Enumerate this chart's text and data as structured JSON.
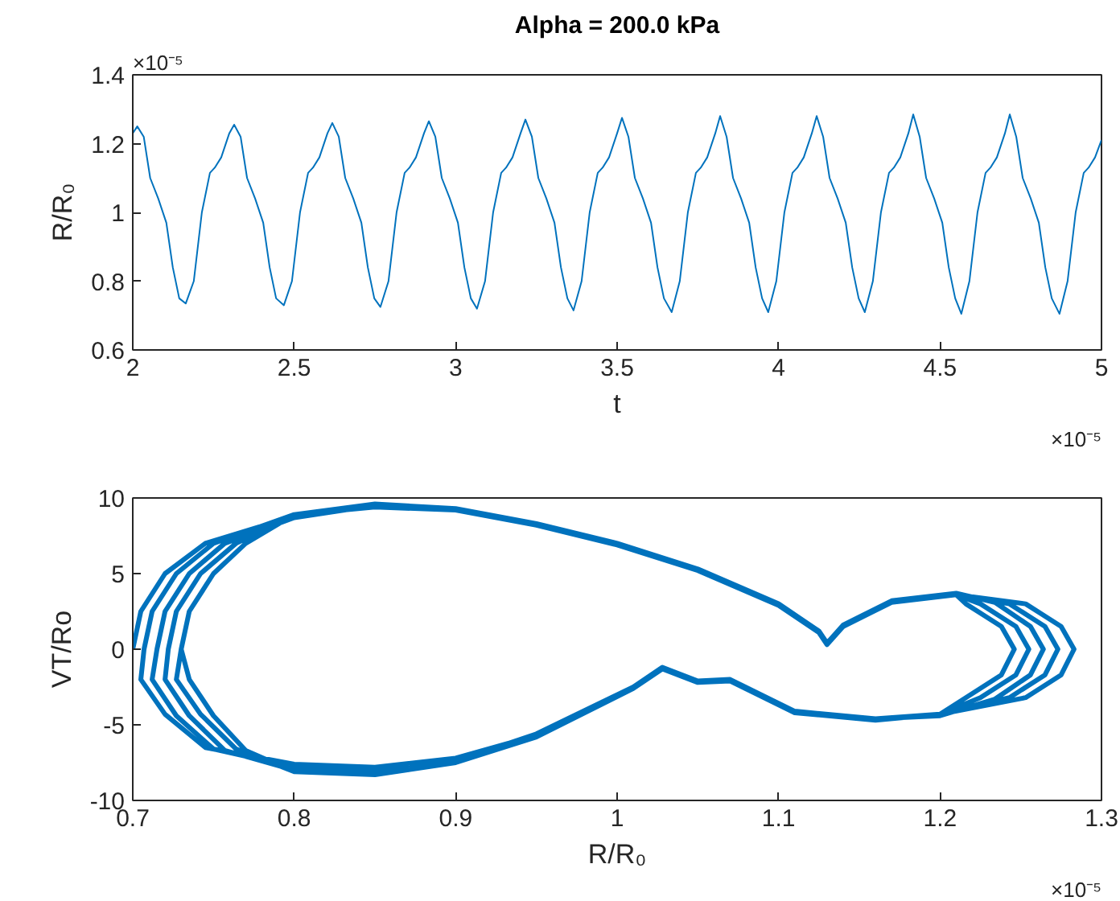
{
  "chart_data": [
    {
      "type": "line",
      "title": "Alpha = 200.0 kPa",
      "xlabel": "t",
      "ylabel": "R/R₀",
      "xlim": [
        2,
        5
      ],
      "xticks": [
        2,
        2.5,
        3,
        3.5,
        4,
        4.5,
        5
      ],
      "ylim": [
        0.6,
        1.4
      ],
      "yticks": [
        0.6,
        0.8,
        1,
        1.2,
        1.4
      ],
      "grid": false,
      "annotations": [
        "×10⁻⁵",
        "×10⁻⁵"
      ],
      "series": [
        {
          "color": "#0072bd",
          "x": [
            2.0,
            2.014,
            2.034,
            2.054,
            2.079,
            2.104,
            2.124,
            2.144,
            2.164,
            2.189,
            2.214,
            2.239,
            2.254,
            2.274,
            2.299,
            2.314,
            2.334,
            2.354,
            2.379,
            2.404,
            2.424,
            2.444,
            2.468,
            2.493,
            2.518,
            2.543,
            2.558,
            2.578,
            2.603,
            2.618,
            2.638,
            2.658,
            2.683,
            2.708,
            2.728,
            2.748,
            2.767,
            2.792,
            2.817,
            2.842,
            2.857,
            2.877,
            2.902,
            2.917,
            2.937,
            2.957,
            2.982,
            3.007,
            3.027,
            3.047,
            3.066,
            3.091,
            3.116,
            3.141,
            3.156,
            3.176,
            3.201,
            3.216,
            3.236,
            3.256,
            3.281,
            3.306,
            3.326,
            3.346,
            3.365,
            3.39,
            3.415,
            3.44,
            3.455,
            3.475,
            3.5,
            3.515,
            3.535,
            3.555,
            3.58,
            3.605,
            3.625,
            3.645,
            3.669,
            3.694,
            3.719,
            3.744,
            3.759,
            3.779,
            3.804,
            3.819,
            3.839,
            3.859,
            3.884,
            3.909,
            3.929,
            3.949,
            3.968,
            3.993,
            4.018,
            4.043,
            4.058,
            4.078,
            4.103,
            4.118,
            4.138,
            4.158,
            4.183,
            4.208,
            4.228,
            4.248,
            4.267,
            4.292,
            4.317,
            4.342,
            4.357,
            4.377,
            4.402,
            4.417,
            4.437,
            4.457,
            4.482,
            4.507,
            4.527,
            4.547,
            4.566,
            4.591,
            4.616,
            4.641,
            4.656,
            4.676,
            4.701,
            4.716,
            4.736,
            4.756,
            4.781,
            4.806,
            4.826,
            4.846,
            4.87,
            4.895,
            4.92,
            4.945,
            4.96,
            4.98,
            5.0
          ],
          "values": [
            1.23,
            1.25,
            1.22,
            1.1,
            1.04,
            0.97,
            0.84,
            0.75,
            0.735,
            0.8,
            1.0,
            1.115,
            1.13,
            1.16,
            1.23,
            1.255,
            1.22,
            1.1,
            1.04,
            0.97,
            0.84,
            0.75,
            0.73,
            0.8,
            1.0,
            1.115,
            1.13,
            1.16,
            1.23,
            1.26,
            1.22,
            1.1,
            1.04,
            0.97,
            0.84,
            0.75,
            0.725,
            0.8,
            1.0,
            1.115,
            1.13,
            1.16,
            1.23,
            1.265,
            1.22,
            1.1,
            1.04,
            0.97,
            0.84,
            0.75,
            0.72,
            0.8,
            1.0,
            1.115,
            1.13,
            1.16,
            1.23,
            1.27,
            1.22,
            1.1,
            1.04,
            0.97,
            0.84,
            0.75,
            0.715,
            0.8,
            1.0,
            1.115,
            1.13,
            1.16,
            1.23,
            1.275,
            1.22,
            1.1,
            1.04,
            0.97,
            0.84,
            0.75,
            0.71,
            0.8,
            1.0,
            1.115,
            1.13,
            1.16,
            1.23,
            1.28,
            1.22,
            1.1,
            1.04,
            0.97,
            0.84,
            0.75,
            0.71,
            0.8,
            1.0,
            1.115,
            1.13,
            1.16,
            1.23,
            1.28,
            1.22,
            1.1,
            1.04,
            0.97,
            0.84,
            0.75,
            0.71,
            0.8,
            1.0,
            1.115,
            1.13,
            1.16,
            1.23,
            1.285,
            1.22,
            1.1,
            1.04,
            0.97,
            0.84,
            0.75,
            0.705,
            0.8,
            1.0,
            1.115,
            1.13,
            1.16,
            1.23,
            1.285,
            1.22,
            1.1,
            1.04,
            0.97,
            0.84,
            0.75,
            0.705,
            0.8,
            1.0,
            1.115,
            1.13,
            1.16,
            1.21
          ]
        }
      ]
    },
    {
      "type": "line",
      "xlabel": "R/R₀",
      "ylabel": "VT/Ro",
      "xlim": [
        0.7,
        1.3
      ],
      "xticks": [
        0.7,
        0.8,
        0.9,
        1,
        1.1,
        1.2,
        1.3
      ],
      "ylim": [
        -10,
        10
      ],
      "yticks": [
        -10,
        -5,
        0,
        5,
        10
      ],
      "grid": false,
      "annotations": [
        "×10⁻⁵"
      ],
      "series": [
        {
          "color": "#0072bd",
          "x": [
            0.7,
            0.705,
            0.72,
            0.745,
            0.8,
            0.85,
            0.9,
            0.95,
            1.0,
            1.05,
            1.1,
            1.125,
            1.13,
            1.14,
            1.17,
            1.21,
            1.253,
            1.275,
            1.283,
            1.275,
            1.253,
            1.2,
            1.16,
            1.11,
            1.07,
            1.05,
            1.028,
            1.01,
            0.95,
            0.9,
            0.85,
            0.8,
            0.745,
            0.72,
            0.705,
            0.707,
            0.712,
            0.727,
            0.75,
            0.8,
            0.85,
            0.9,
            0.95,
            1.0,
            1.05,
            1.1,
            1.125,
            1.13,
            1.14,
            1.17,
            1.21,
            1.243,
            1.265,
            1.273,
            1.265,
            1.243,
            1.2,
            1.16,
            1.11,
            1.07,
            1.05,
            1.028,
            1.01,
            0.95,
            0.9,
            0.85,
            0.8,
            0.75,
            0.727,
            0.712,
            0.715,
            0.72,
            0.735,
            0.757,
            0.8,
            0.85,
            0.9,
            0.95,
            1.0,
            1.05,
            1.1,
            1.125,
            1.13,
            1.14,
            1.17,
            1.21,
            1.234,
            1.256,
            1.264,
            1.256,
            1.234,
            1.2,
            1.16,
            1.11,
            1.07,
            1.05,
            1.028,
            1.01,
            0.95,
            0.9,
            0.85,
            0.8,
            0.757,
            0.735,
            0.72,
            0.722,
            0.727,
            0.742,
            0.764,
            0.8,
            0.85,
            0.9,
            0.95,
            1.0,
            1.05,
            1.1,
            1.125,
            1.13,
            1.14,
            1.17,
            1.21,
            1.225,
            1.247,
            1.255,
            1.247,
            1.225,
            1.2,
            1.16,
            1.11,
            1.07,
            1.05,
            1.028,
            1.01,
            0.95,
            0.9,
            0.85,
            0.8,
            0.764,
            0.742,
            0.727,
            0.73,
            0.735,
            0.75,
            0.77,
            0.8,
            0.85,
            0.9,
            0.95,
            1.0,
            1.05,
            1.1,
            1.125,
            1.13,
            1.14,
            1.17,
            1.21,
            1.216,
            1.238,
            1.246,
            1.238,
            1.216,
            1.2,
            1.16,
            1.11,
            1.07,
            1.05,
            1.028,
            1.01,
            0.95,
            0.9,
            0.85,
            0.8,
            0.77,
            0.75,
            0.735,
            0.73
          ],
          "values": [
            0,
            2.5,
            5,
            7,
            8.8,
            9.5,
            9.3,
            8.3,
            7,
            5.3,
            3,
            1.2,
            0.4,
            1.5,
            3.1,
            3.6,
            3.0,
            1.5,
            0,
            -1.7,
            -3.2,
            -4.3,
            -4.6,
            -4.1,
            -2.0,
            -2.1,
            -1.2,
            -2.5,
            -5.7,
            -7.2,
            -7.8,
            -7.6,
            -6.5,
            -4.3,
            -2,
            0,
            2.5,
            5,
            7,
            8.9,
            9.6,
            9.3,
            8.2,
            6.9,
            5.2,
            2.9,
            1.1,
            0.3,
            1.5,
            3.1,
            3.6,
            3.0,
            1.5,
            0,
            -1.7,
            -3.2,
            -4.3,
            -4.7,
            -4.2,
            -2.1,
            -2.2,
            -1.3,
            -2.6,
            -5.8,
            -7.3,
            -8.0,
            -7.8,
            -6.6,
            -4.4,
            -2,
            0,
            2.5,
            5,
            7,
            8.7,
            9.5,
            9.2,
            8.3,
            7,
            5.3,
            3,
            1.2,
            0.4,
            1.6,
            3.2,
            3.7,
            3.1,
            1.5,
            0,
            -1.7,
            -3.3,
            -4.4,
            -4.6,
            -4.1,
            -2.0,
            -2.1,
            -1.2,
            -2.5,
            -5.6,
            -7.4,
            -8.2,
            -8.0,
            -6.7,
            -4.4,
            -2,
            0,
            2.5,
            5,
            7,
            8.8,
            9.5,
            9.3,
            8.3,
            7,
            5.3,
            3,
            1.2,
            0.4,
            1.5,
            3.1,
            3.6,
            3.0,
            1.5,
            0,
            -1.7,
            -3.2,
            -4.3,
            -4.6,
            -4.1,
            -2.0,
            -2.1,
            -1.2,
            -2.5,
            -5.7,
            -7.3,
            -8.1,
            -8.1,
            -6.6,
            -4.3,
            -2,
            0,
            2.5,
            5,
            7,
            8.9,
            9.4,
            9.2,
            8.2,
            6.9,
            5.2,
            2.9,
            1.1,
            0.3,
            1.5,
            3.1,
            3.6,
            3.0,
            1.5,
            0,
            -1.7,
            -3.2,
            -4.3,
            -4.7,
            -4.2,
            -2.1,
            -2.2,
            -1.3,
            -2.6,
            -5.8,
            -7.5,
            -8.3,
            -8.1,
            -6.7,
            -4.4,
            -2,
            0
          ]
        }
      ]
    }
  ]
}
